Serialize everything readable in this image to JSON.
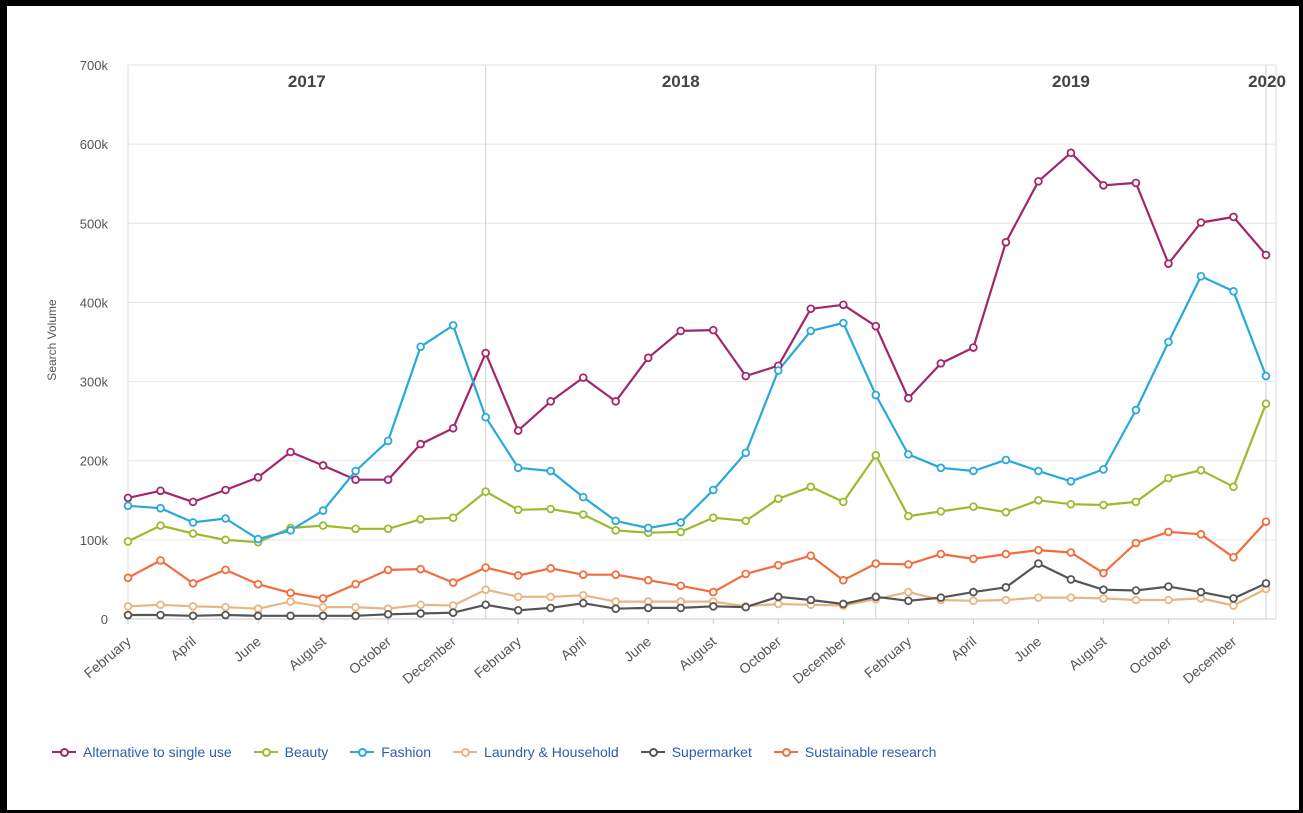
{
  "chart_data": {
    "type": "line",
    "ylabel": "Search Volume",
    "ylim": [
      0,
      700000
    ],
    "yticks": [
      {
        "value": 0,
        "label": "0"
      },
      {
        "value": 100000,
        "label": "100k"
      },
      {
        "value": 200000,
        "label": "200k"
      },
      {
        "value": 300000,
        "label": "300k"
      },
      {
        "value": 400000,
        "label": "400k"
      },
      {
        "value": 500000,
        "label": "500k"
      },
      {
        "value": 600000,
        "label": "600k"
      },
      {
        "value": 700000,
        "label": "700k"
      }
    ],
    "x": [
      "2017-02",
      "2017-03",
      "2017-04",
      "2017-05",
      "2017-06",
      "2017-07",
      "2017-08",
      "2017-09",
      "2017-10",
      "2017-11",
      "2017-12",
      "2018-01",
      "2018-02",
      "2018-03",
      "2018-04",
      "2018-05",
      "2018-06",
      "2018-07",
      "2018-08",
      "2018-09",
      "2018-10",
      "2018-11",
      "2018-12",
      "2019-01",
      "2019-02",
      "2019-03",
      "2019-04",
      "2019-05",
      "2019-06",
      "2019-07",
      "2019-08",
      "2019-09",
      "2019-10",
      "2019-11",
      "2019-12",
      "2020-01"
    ],
    "xtick_labels": [
      {
        "at": "2017-02",
        "label": "February"
      },
      {
        "at": "2017-04",
        "label": "April"
      },
      {
        "at": "2017-06",
        "label": "June"
      },
      {
        "at": "2017-08",
        "label": "August"
      },
      {
        "at": "2017-10",
        "label": "October"
      },
      {
        "at": "2017-12",
        "label": "December"
      },
      {
        "at": "2018-02",
        "label": "February"
      },
      {
        "at": "2018-04",
        "label": "April"
      },
      {
        "at": "2018-06",
        "label": "June"
      },
      {
        "at": "2018-08",
        "label": "August"
      },
      {
        "at": "2018-10",
        "label": "October"
      },
      {
        "at": "2018-12",
        "label": "December"
      },
      {
        "at": "2019-02",
        "label": "February"
      },
      {
        "at": "2019-04",
        "label": "April"
      },
      {
        "at": "2019-06",
        "label": "June"
      },
      {
        "at": "2019-08",
        "label": "August"
      },
      {
        "at": "2019-10",
        "label": "October"
      },
      {
        "at": "2019-12",
        "label": "December"
      }
    ],
    "year_bands": [
      {
        "label": "2017",
        "start": "2017-02",
        "end": "2018-01"
      },
      {
        "label": "2018",
        "start": "2018-01",
        "end": "2019-01"
      },
      {
        "label": "2019",
        "start": "2019-01",
        "end": "2020-01"
      },
      {
        "label": "2020",
        "start": "2020-01",
        "end": "2020-01"
      }
    ],
    "grid": true,
    "legend_position": "bottom-left",
    "series": [
      {
        "name": "Alternative to single use",
        "color": "#a3266b",
        "values": [
          153000,
          162000,
          148000,
          163000,
          179000,
          211000,
          194000,
          176000,
          176000,
          221000,
          241000,
          336000,
          238000,
          275000,
          305000,
          275000,
          330000,
          364000,
          365000,
          307000,
          320000,
          392000,
          397000,
          370000,
          279000,
          323000,
          343000,
          476000,
          553000,
          589000,
          548000,
          551000,
          449000,
          501000,
          508000,
          460000
        ]
      },
      {
        "name": "Beauty",
        "color": "#9bbb2f",
        "values": [
          98000,
          118000,
          108000,
          100000,
          97000,
          115000,
          118000,
          114000,
          114000,
          126000,
          128000,
          161000,
          138000,
          139000,
          132000,
          112000,
          109000,
          110000,
          128000,
          124000,
          152000,
          167000,
          148000,
          207000,
          130000,
          136000,
          142000,
          135000,
          150000,
          145000,
          144000,
          148000,
          178000,
          188000,
          167000,
          272000
        ]
      },
      {
        "name": "Fashion",
        "color": "#29a8dc",
        "values": [
          143000,
          140000,
          122000,
          127000,
          101000,
          112000,
          137000,
          187000,
          225000,
          344000,
          371000,
          255000,
          191000,
          187000,
          154000,
          124000,
          115000,
          122000,
          163000,
          210000,
          314000,
          364000,
          374000,
          283000,
          208000,
          191000,
          187000,
          201000,
          187000,
          174000,
          189000,
          264000,
          350000,
          433000,
          414000,
          307000
        ]
      },
      {
        "name": "Laundry & Household",
        "color": "#e7b682",
        "values": [
          16000,
          18000,
          16000,
          15000,
          13000,
          22000,
          15000,
          15000,
          13000,
          18000,
          17000,
          37000,
          28000,
          28000,
          30000,
          22000,
          22000,
          22000,
          22000,
          16000,
          19000,
          18000,
          17000,
          25000,
          34000,
          24000,
          23000,
          24000,
          27000,
          27000,
          26000,
          24000,
          24000,
          26000,
          17000,
          38000
        ]
      },
      {
        "name": "Supermarket",
        "color": "#555555",
        "values": [
          5000,
          5000,
          4000,
          5000,
          4000,
          4000,
          4000,
          4000,
          6000,
          7000,
          8000,
          18000,
          11000,
          14000,
          20000,
          13000,
          14000,
          14000,
          16000,
          15000,
          28000,
          24000,
          19000,
          28000,
          23000,
          27000,
          34000,
          40000,
          70000,
          50000,
          37000,
          36000,
          41000,
          34000,
          26000,
          45000
        ]
      },
      {
        "name": "Sustainable research",
        "color": "#f26d3d",
        "values": [
          52000,
          74000,
          45000,
          62000,
          44000,
          33000,
          26000,
          44000,
          62000,
          63000,
          46000,
          65000,
          55000,
          64000,
          56000,
          56000,
          49000,
          42000,
          34000,
          57000,
          68000,
          80000,
          49000,
          70000,
          69000,
          82000,
          76000,
          82000,
          87000,
          84000,
          58000,
          96000,
          110000,
          107000,
          78000,
          123000
        ]
      }
    ]
  }
}
